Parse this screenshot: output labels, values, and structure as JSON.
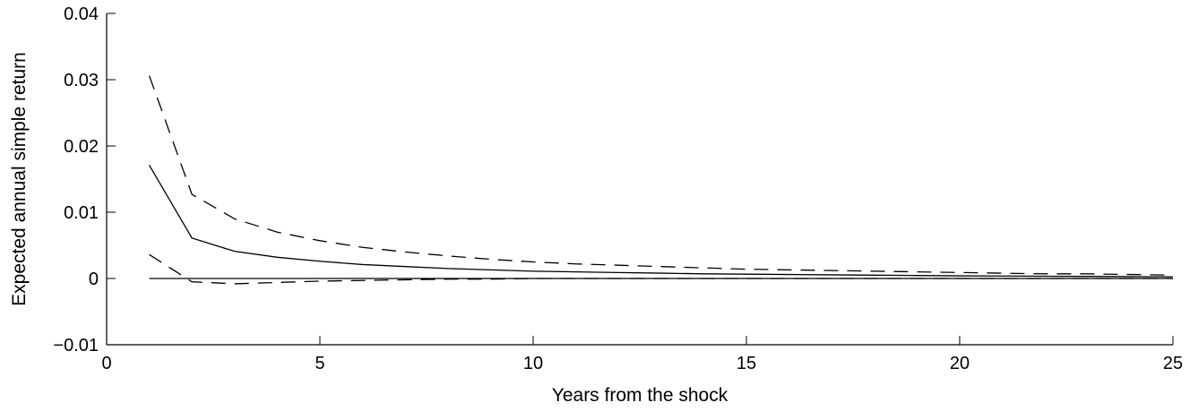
{
  "chart_data": {
    "type": "line",
    "xlabel": "Years from the shock",
    "ylabel": "Expected annual simple return",
    "xlim": [
      0,
      25
    ],
    "ylim": [
      -0.01,
      0.04
    ],
    "x_ticks": [
      0,
      5,
      10,
      15,
      20,
      25
    ],
    "x_tick_labels": [
      "0",
      "5",
      "10",
      "15",
      "20",
      "25"
    ],
    "y_ticks": [
      -0.01,
      0,
      0.01,
      0.02,
      0.03,
      0.04
    ],
    "y_tick_labels": [
      "−0.01",
      "0",
      "0.01",
      "0.02",
      "0.03",
      "0.04"
    ],
    "grid": false,
    "x": [
      1,
      2,
      3,
      4,
      5,
      6,
      7,
      8,
      9,
      10,
      11,
      12,
      13,
      14,
      15,
      16,
      17,
      18,
      19,
      20,
      21,
      22,
      23,
      24,
      25
    ],
    "series": [
      {
        "style": "solid",
        "values": [
          0.0171,
          0.0061,
          0.0041,
          0.0032,
          0.0026,
          0.0021,
          0.0018,
          0.0015,
          0.0013,
          0.0011,
          0.001,
          0.0009,
          0.0008,
          0.0007,
          0.00065,
          0.0006,
          0.00055,
          0.0005,
          0.00045,
          0.0004,
          0.00037,
          0.00034,
          0.00031,
          0.00028,
          0.00025
        ]
      },
      {
        "style": "dashed",
        "values": [
          0.0306,
          0.0127,
          0.009,
          0.007,
          0.0057,
          0.0047,
          0.004,
          0.0034,
          0.0029,
          0.0025,
          0.0022,
          0.002,
          0.0018,
          0.0016,
          0.0014,
          0.0013,
          0.0012,
          0.0011,
          0.001,
          0.0009,
          0.0008,
          0.0007,
          0.0007,
          0.0006,
          0.0005
        ]
      },
      {
        "style": "dashed",
        "values": [
          0.0036,
          -0.0005,
          -0.0008,
          -0.0006,
          -0.0004,
          -0.0003,
          -0.0002,
          -0.0001,
          -0.0001,
          0.0,
          0.0,
          0.0,
          0.0,
          0.0,
          0.0,
          0.0,
          0.0,
          0.0,
          0.0,
          0.0,
          0.0,
          0.0,
          0.0,
          0.0,
          0.0
        ]
      }
    ],
    "reference_line": {
      "y": 0,
      "x_range": [
        1,
        25
      ],
      "style": "solid"
    },
    "colors": {
      "line": "#000000",
      "axis": "#000000",
      "background": "#ffffff"
    }
  }
}
